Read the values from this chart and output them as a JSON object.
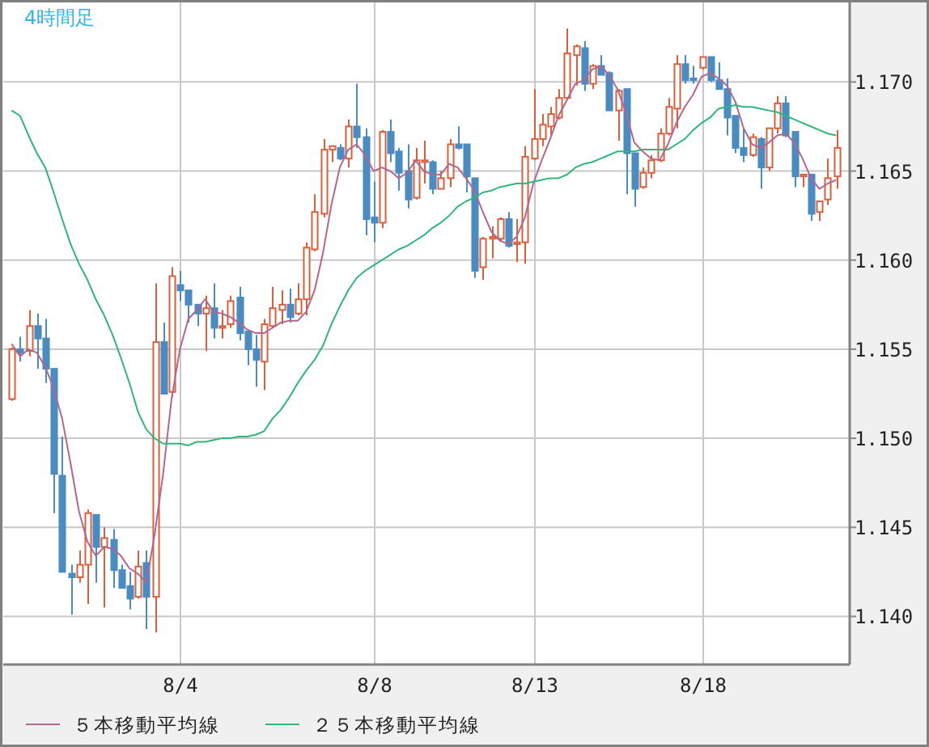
{
  "chart_data": {
    "type": "candlestick",
    "title": "4時間足",
    "categories": [
      null,
      null,
      null,
      null,
      null,
      null,
      null,
      null,
      null,
      null,
      null,
      null,
      null,
      null,
      null,
      null,
      null,
      null,
      null,
      null,
      "8/4",
      null,
      null,
      null,
      null,
      null,
      null,
      null,
      null,
      null,
      null,
      null,
      null,
      null,
      null,
      null,
      null,
      null,
      null,
      null,
      null,
      null,
      null,
      "8/8",
      null,
      null,
      null,
      null,
      null,
      null,
      null,
      null,
      null,
      null,
      null,
      null,
      null,
      null,
      null,
      null,
      null,
      null,
      "8/13",
      null,
      null,
      null,
      null,
      null,
      null,
      null,
      null,
      null,
      null,
      null,
      null,
      null,
      null,
      null,
      null,
      null,
      null,
      null,
      "8/18",
      null,
      null,
      null,
      null,
      null,
      null,
      null,
      null,
      null,
      null,
      null,
      null,
      null,
      null,
      null,
      null
    ],
    "ohlc": [
      [
        1.1522,
        1.1551,
        1.1521,
        1.155
      ],
      [
        1.155,
        1.1557,
        1.1543,
        1.1548
      ],
      [
        1.1549,
        1.1572,
        1.1546,
        1.1563
      ],
      [
        1.1563,
        1.157,
        1.1539,
        1.1556
      ],
      [
        1.1556,
        1.1567,
        1.1531,
        1.1539
      ],
      [
        1.1539,
        1.1539,
        1.1458,
        1.148
      ],
      [
        1.1479,
        1.1501,
        1.1425,
        1.1425
      ],
      [
        1.1424,
        1.1429,
        1.1401,
        1.1422
      ],
      [
        1.1422,
        1.1437,
        1.1419,
        1.1429
      ],
      [
        1.1429,
        1.146,
        1.1407,
        1.1458
      ],
      [
        1.1457,
        1.1457,
        1.1419,
        1.1439
      ],
      [
        1.1439,
        1.145,
        1.1405,
        1.1444
      ],
      [
        1.1443,
        1.1449,
        1.1416,
        1.1426
      ],
      [
        1.1426,
        1.1429,
        1.1416,
        1.1416
      ],
      [
        1.1417,
        1.1425,
        1.1404,
        1.141
      ],
      [
        1.1411,
        1.1437,
        1.141,
        1.1428
      ],
      [
        1.143,
        1.1437,
        1.1393,
        1.1411
      ],
      [
        1.1411,
        1.1587,
        1.1391,
        1.1554
      ],
      [
        1.1554,
        1.1565,
        1.1525,
        1.1525
      ],
      [
        1.1526,
        1.1596,
        1.1523,
        1.1591
      ],
      [
        1.1586,
        1.1594,
        1.1577,
        1.1583
      ],
      [
        1.1583,
        1.1583,
        1.1565,
        1.1575
      ],
      [
        1.1575,
        1.1575,
        1.1563,
        1.157
      ],
      [
        1.157,
        1.158,
        1.1549,
        1.1573
      ],
      [
        1.1573,
        1.1587,
        1.1556,
        1.1562
      ],
      [
        1.1562,
        1.1572,
        1.1556,
        1.1563
      ],
      [
        1.1564,
        1.158,
        1.1562,
        1.1577
      ],
      [
        1.1579,
        1.1585,
        1.1555,
        1.1559
      ],
      [
        1.156,
        1.156,
        1.1541,
        1.155
      ],
      [
        1.155,
        1.1558,
        1.1529,
        1.1544
      ],
      [
        1.1543,
        1.1567,
        1.1527,
        1.1564
      ],
      [
        1.1563,
        1.1585,
        1.1562,
        1.1573
      ],
      [
        1.1572,
        1.1583,
        1.1564,
        1.1575
      ],
      [
        1.1575,
        1.1584,
        1.1565,
        1.1568
      ],
      [
        1.157,
        1.1587,
        1.1569,
        1.1578
      ],
      [
        1.1578,
        1.161,
        1.1569,
        1.1607
      ],
      [
        1.1606,
        1.1637,
        1.1605,
        1.1627
      ],
      [
        1.1626,
        1.1668,
        1.1624,
        1.1662
      ],
      [
        1.1662,
        1.1664,
        1.1655,
        1.1664
      ],
      [
        1.1663,
        1.1665,
        1.1656,
        1.1657
      ],
      [
        1.1657,
        1.1679,
        1.1652,
        1.1675
      ],
      [
        1.1675,
        1.1699,
        1.1663,
        1.1669
      ],
      [
        1.1669,
        1.1674,
        1.1614,
        1.1623
      ],
      [
        1.1624,
        1.1644,
        1.161,
        1.1621
      ],
      [
        1.1621,
        1.1673,
        1.1618,
        1.1672
      ],
      [
        1.1672,
        1.1679,
        1.1655,
        1.166
      ],
      [
        1.1661,
        1.1663,
        1.1639,
        1.1649
      ],
      [
        1.165,
        1.1665,
        1.1629,
        1.1634
      ],
      [
        1.1635,
        1.1663,
        1.1634,
        1.1656
      ],
      [
        1.1655,
        1.1667,
        1.1643,
        1.1656
      ],
      [
        1.1655,
        1.1656,
        1.1637,
        1.164
      ],
      [
        1.164,
        1.165,
        1.164,
        1.1646
      ],
      [
        1.1646,
        1.1668,
        1.1641,
        1.1665
      ],
      [
        1.1665,
        1.1675,
        1.1662,
        1.1663
      ],
      [
        1.1665,
        1.1665,
        1.1638,
        1.1647
      ],
      [
        1.1646,
        1.1646,
        1.159,
        1.1594
      ],
      [
        1.1596,
        1.1613,
        1.1589,
        1.1612
      ],
      [
        1.1612,
        1.1619,
        1.1601,
        1.1613
      ],
      [
        1.1612,
        1.1624,
        1.1611,
        1.1623
      ],
      [
        1.1623,
        1.1627,
        1.1607,
        1.1608
      ],
      [
        1.1609,
        1.1623,
        1.1599,
        1.161
      ],
      [
        1.161,
        1.1664,
        1.1598,
        1.1658
      ],
      [
        1.1657,
        1.1696,
        1.1656,
        1.1668
      ],
      [
        1.1668,
        1.1682,
        1.1664,
        1.1676
      ],
      [
        1.1675,
        1.1686,
        1.167,
        1.1682
      ],
      [
        1.168,
        1.1696,
        1.1679,
        1.1691
      ],
      [
        1.1691,
        1.173,
        1.169,
        1.1716
      ],
      [
        1.1715,
        1.1721,
        1.1698,
        1.172
      ],
      [
        1.1719,
        1.1723,
        1.1695,
        1.1699
      ],
      [
        1.1699,
        1.171,
        1.1696,
        1.1709
      ],
      [
        1.1709,
        1.1715,
        1.1704,
        1.1704
      ],
      [
        1.1705,
        1.1706,
        1.1684,
        1.1684
      ],
      [
        1.1684,
        1.1696,
        1.1667,
        1.1695
      ],
      [
        1.1696,
        1.1696,
        1.1637,
        1.166
      ],
      [
        1.166,
        1.166,
        1.163,
        1.164
      ],
      [
        1.1641,
        1.1652,
        1.164,
        1.1649
      ],
      [
        1.1649,
        1.1659,
        1.1646,
        1.1656
      ],
      [
        1.1656,
        1.1674,
        1.1655,
        1.1671
      ],
      [
        1.1671,
        1.1691,
        1.167,
        1.1686
      ],
      [
        1.1685,
        1.1715,
        1.1674,
        1.171
      ],
      [
        1.171,
        1.1715,
        1.1699,
        1.1701
      ],
      [
        1.1702,
        1.1709,
        1.1699,
        1.1701
      ],
      [
        1.1708,
        1.1714,
        1.1707,
        1.1714
      ],
      [
        1.1714,
        1.1714,
        1.17,
        1.1701
      ],
      [
        1.1701,
        1.1711,
        1.1696,
        1.1696
      ],
      [
        1.1696,
        1.1702,
        1.167,
        1.168
      ],
      [
        1.1681,
        1.1681,
        1.166,
        1.1663
      ],
      [
        1.1663,
        1.1674,
        1.1655,
        1.1659
      ],
      [
        1.1659,
        1.1671,
        1.1658,
        1.1669
      ],
      [
        1.1668,
        1.1669,
        1.164,
        1.1652
      ],
      [
        1.1652,
        1.1674,
        1.165,
        1.1674
      ],
      [
        1.1674,
        1.1692,
        1.1671,
        1.1688
      ],
      [
        1.1688,
        1.1692,
        1.1669,
        1.167
      ],
      [
        1.1672,
        1.1672,
        1.1641,
        1.1647
      ],
      [
        1.1647,
        1.1648,
        1.1641,
        1.1648
      ],
      [
        1.1648,
        1.1648,
        1.1622,
        1.1626
      ],
      [
        1.1627,
        1.1633,
        1.1622,
        1.1633
      ],
      [
        1.1634,
        1.1657,
        1.1631,
        1.1646
      ],
      [
        1.1647,
        1.1673,
        1.164,
        1.1663
      ]
    ],
    "series": [
      {
        "name": "５本移動平均線",
        "type": "line",
        "color": "#b5668e",
        "values": [
          1.1553,
          1.1546,
          1.155,
          1.1548,
          1.154,
          1.1528,
          1.1511,
          1.1486,
          1.1459,
          1.1442,
          1.1434,
          1.1439,
          1.1438,
          1.1434,
          1.1427,
          1.1424,
          1.1419,
          1.1446,
          1.148,
          1.1522,
          1.155,
          1.1567,
          1.1572,
          1.1578,
          1.1571,
          1.157,
          1.1568,
          1.1565,
          1.1561,
          1.1559,
          1.1559,
          1.1562,
          1.1565,
          1.1566,
          1.1566,
          1.1571,
          1.1583,
          1.1604,
          1.1631,
          1.1652,
          1.1662,
          1.1665,
          1.1659,
          1.165,
          1.1652,
          1.165,
          1.1646,
          1.1649,
          1.1656,
          1.165,
          1.1648,
          1.1648,
          1.1654,
          1.1652,
          1.1646,
          1.1639,
          1.1627,
          1.1616,
          1.1611,
          1.1609,
          1.1613,
          1.1624,
          1.1643,
          1.1656,
          1.1668,
          1.1681,
          1.169,
          1.1699,
          1.1701,
          1.1707,
          1.1709,
          1.1704,
          1.1696,
          1.1683,
          1.1666,
          1.1661,
          1.1657,
          1.1656,
          1.1665,
          1.1677,
          1.1686,
          1.1693,
          1.1703,
          1.1705,
          1.1702,
          1.1698,
          1.1689,
          1.1674,
          1.1665,
          1.1663,
          1.1666,
          1.167,
          1.1671,
          1.1666,
          1.1657,
          1.1646,
          1.164,
          1.1643,
          1.1645
        ]
      },
      {
        "name": "２５本移動平均線",
        "type": "line",
        "color": "#2db87a",
        "values": [
          1.1684,
          1.1681,
          1.167,
          1.166,
          1.1652,
          1.1638,
          1.1623,
          1.1609,
          1.1598,
          1.1589,
          1.1578,
          1.1569,
          1.1558,
          1.1545,
          1.1531,
          1.1515,
          1.1505,
          1.15,
          1.1497,
          1.1497,
          1.1497,
          1.1496,
          1.1498,
          1.1498,
          1.1499,
          1.15,
          1.15,
          1.1501,
          1.1501,
          1.1502,
          1.1504,
          1.1511,
          1.1516,
          1.1523,
          1.1531,
          1.1538,
          1.1544,
          1.1552,
          1.1564,
          1.1574,
          1.1583,
          1.159,
          1.1594,
          1.1597,
          1.16,
          1.1603,
          1.1606,
          1.1608,
          1.1611,
          1.1614,
          1.1618,
          1.1621,
          1.1625,
          1.163,
          1.1633,
          1.1635,
          1.1638,
          1.1639,
          1.1641,
          1.1642,
          1.1643,
          1.1643,
          1.1644,
          1.1645,
          1.1646,
          1.1646,
          1.1648,
          1.1652,
          1.1654,
          1.1655,
          1.1657,
          1.1659,
          1.1661,
          1.1661,
          1.1661,
          1.1662,
          1.1662,
          1.1662,
          1.1662,
          1.1665,
          1.1668,
          1.1673,
          1.1677,
          1.168,
          1.1685,
          1.1686,
          1.1687,
          1.1686,
          1.1686,
          1.1685,
          1.1684,
          1.1683,
          1.1681,
          1.1679,
          1.1677,
          1.1675,
          1.1673,
          1.1671,
          1.167
        ]
      }
    ],
    "ylim": [
      1.1373,
      1.1746
    ],
    "yticks": [
      {
        "value": 1.14,
        "label": "1.140"
      },
      {
        "value": 1.145,
        "label": "1.145"
      },
      {
        "value": 1.15,
        "label": "1.150"
      },
      {
        "value": 1.155,
        "label": "1.155"
      },
      {
        "value": 1.16,
        "label": "1.160"
      },
      {
        "value": 1.165,
        "label": "1.165"
      },
      {
        "value": 1.17,
        "label": "1.170"
      }
    ],
    "grid": true,
    "legend": "bottom"
  }
}
